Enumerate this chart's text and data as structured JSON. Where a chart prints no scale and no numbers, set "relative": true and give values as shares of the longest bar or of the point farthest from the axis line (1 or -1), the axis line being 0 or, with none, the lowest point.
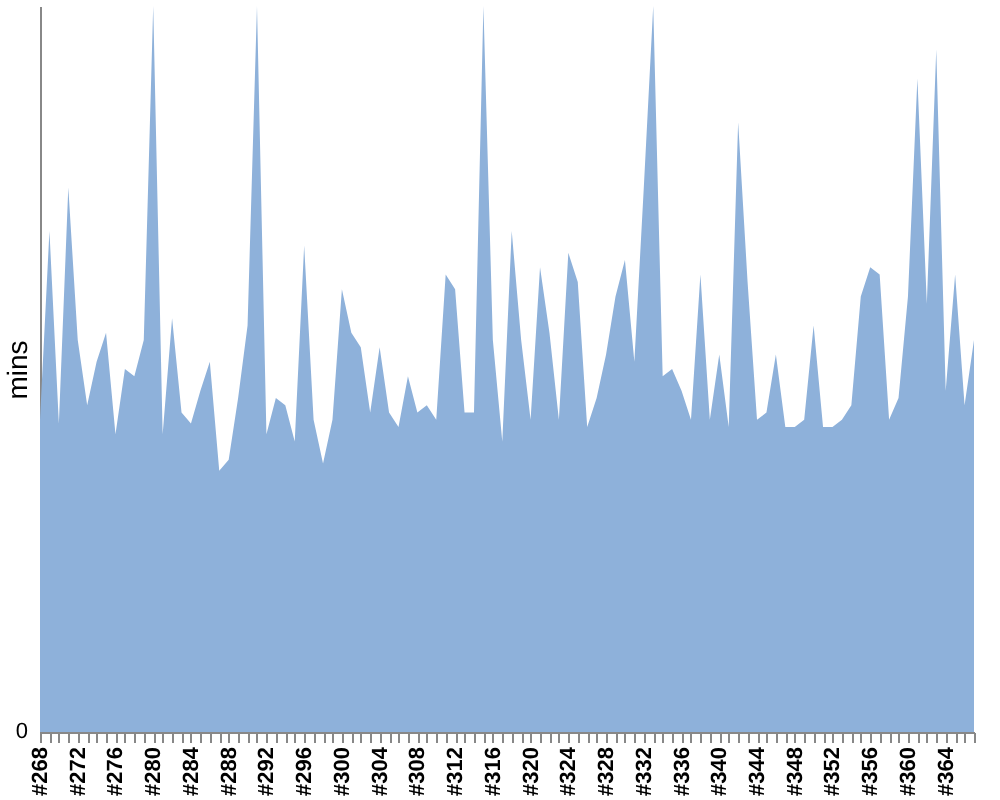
{
  "chart_data": {
    "type": "area",
    "relative": true,
    "ylabel": "mins",
    "annotations": [
      "0"
    ],
    "grid": false,
    "categories": [
      "#268",
      null,
      null,
      null,
      "#272",
      null,
      null,
      null,
      "#276",
      null,
      null,
      null,
      "#280",
      null,
      null,
      null,
      "#284",
      null,
      null,
      null,
      "#288",
      null,
      null,
      null,
      "#292",
      null,
      null,
      null,
      "#296",
      null,
      null,
      null,
      "#300",
      null,
      null,
      null,
      "#304",
      null,
      null,
      null,
      "#308",
      null,
      null,
      null,
      "#312",
      null,
      null,
      null,
      "#316",
      null,
      null,
      null,
      "#320",
      null,
      null,
      null,
      "#324",
      null,
      null,
      null,
      "#328",
      null,
      null,
      null,
      "#332",
      null,
      null,
      null,
      "#336",
      null,
      null,
      null,
      "#340",
      null,
      null,
      null,
      "#344",
      null,
      null,
      null,
      "#348",
      null,
      null,
      null,
      "#352",
      null,
      null,
      null,
      "#356",
      null,
      null,
      null,
      "#360",
      null,
      null,
      null,
      "#364",
      null,
      null,
      null
    ],
    "series": [
      {
        "color": "#8eb1da",
        "values": [
          0.43,
          0.69,
          0.425,
          0.75,
          0.54,
          0.45,
          0.51,
          0.55,
          0.41,
          0.5,
          0.49,
          0.54,
          1,
          0.41,
          0.57,
          0.44,
          0.425,
          0.47,
          0.51,
          0.36,
          0.375,
          0.46,
          0.56,
          1,
          0.41,
          0.46,
          0.45,
          0.4,
          0.67,
          0.43,
          0.37,
          0.43,
          0.61,
          0.55,
          0.53,
          0.44,
          0.53,
          0.44,
          0.42,
          0.49,
          0.44,
          0.45,
          0.43,
          0.63,
          0.61,
          0.44,
          0.44,
          1,
          0.54,
          0.4,
          0.69,
          0.54,
          0.43,
          0.64,
          0.55,
          0.43,
          0.66,
          0.62,
          0.42,
          0.46,
          0.52,
          0.6,
          0.65,
          0.51,
          0.75,
          1,
          0.49,
          0.5,
          0.47,
          0.43,
          0.63,
          0.43,
          0.52,
          0.42,
          0.84,
          0.62,
          0.43,
          0.44,
          0.52,
          0.42,
          0.42,
          0.43,
          0.56,
          0.42,
          0.42,
          0.43,
          0.45,
          0.6,
          0.64,
          0.63,
          0.43,
          0.46,
          0.6,
          0.9,
          0.59,
          0.94,
          0.47,
          0.63,
          0.45,
          0.54
        ]
      }
    ]
  }
}
